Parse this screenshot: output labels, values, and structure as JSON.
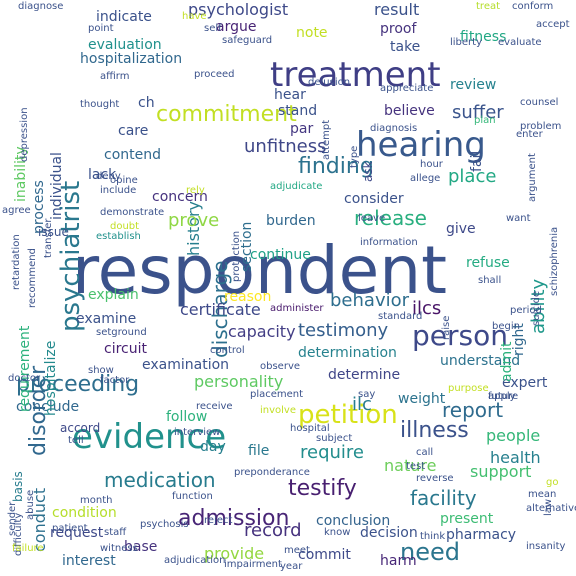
{
  "words": [
    {
      "text": "respondent",
      "color": "#3b528b"
    },
    {
      "text": "treatment",
      "color": "#3f3e85"
    },
    {
      "text": "hearing",
      "color": "#38598c"
    },
    {
      "text": "evidence",
      "color": "#21918c"
    },
    {
      "text": "petition",
      "color": "#d8e219"
    },
    {
      "text": "person",
      "color": "#3e4989"
    },
    {
      "text": "commitment",
      "color": "#c2df23"
    },
    {
      "text": "psychiatrist",
      "color": "#2a788e"
    },
    {
      "text": "testify",
      "color": "#481f70"
    },
    {
      "text": "admission",
      "color": "#482576"
    },
    {
      "text": "finding",
      "color": "#2c728e"
    },
    {
      "text": "disorder",
      "color": "#31688e"
    },
    {
      "text": "discharge",
      "color": "#2d708e"
    },
    {
      "text": "proceeding",
      "color": "#2e6e8e"
    },
    {
      "text": "medication",
      "color": "#287c8e"
    },
    {
      "text": "illness",
      "color": "#3b528b"
    },
    {
      "text": "need",
      "color": "#2b758e"
    },
    {
      "text": "report",
      "color": "#2f6b8e"
    },
    {
      "text": "release",
      "color": "#29af7f"
    },
    {
      "text": "facility",
      "color": "#2a788e"
    },
    {
      "text": "record",
      "color": "#46327e"
    },
    {
      "text": "behavior",
      "color": "#2e6e8e"
    },
    {
      "text": "testimony",
      "color": "#355f8d"
    },
    {
      "text": "capacity",
      "color": "#433e85"
    },
    {
      "text": "certificate",
      "color": "#3e4989"
    },
    {
      "text": "psychologist",
      "color": "#3e4989"
    },
    {
      "text": "result",
      "color": "#3b528b"
    },
    {
      "text": "unfitness",
      "color": "#3f4788"
    },
    {
      "text": "history",
      "color": "#277f8e"
    },
    {
      "text": "ability",
      "color": "#1f988b"
    },
    {
      "text": "suffer",
      "color": "#3a548c"
    },
    {
      "text": "place",
      "color": "#22a884"
    },
    {
      "text": "prove",
      "color": "#8fd744"
    },
    {
      "text": "determination",
      "color": "#26828e"
    },
    {
      "text": "personality",
      "color": "#5ec962"
    },
    {
      "text": "determine",
      "color": "#404688"
    },
    {
      "text": "ilc",
      "color": "#287d8e"
    },
    {
      "text": "ilcs",
      "color": "#481467"
    },
    {
      "text": "require",
      "color": "#228d8d"
    },
    {
      "text": "people",
      "color": "#35b779"
    },
    {
      "text": "health",
      "color": "#27808e"
    },
    {
      "text": "support",
      "color": "#44bf70"
    },
    {
      "text": "nature",
      "color": "#6ccd5a"
    },
    {
      "text": "conduct",
      "color": "#2d708e"
    },
    {
      "text": "conclusion",
      "color": "#33638d"
    },
    {
      "text": "present",
      "color": "#3dbc74"
    },
    {
      "text": "decision",
      "color": "#3b528b"
    },
    {
      "text": "provide",
      "color": "#93d741"
    },
    {
      "text": "interest",
      "color": "#31688e"
    },
    {
      "text": "commit",
      "color": "#3e4989"
    },
    {
      "text": "pharmacy",
      "color": "#3b528b"
    },
    {
      "text": "harm",
      "color": "#482878"
    },
    {
      "text": "base",
      "color": "#46337e"
    },
    {
      "text": "request",
      "color": "#3e4989"
    },
    {
      "text": "condition",
      "color": "#b5de2b"
    },
    {
      "text": "day",
      "color": "#277f8e"
    },
    {
      "text": "file",
      "color": "#2a788e"
    },
    {
      "text": "follow",
      "color": "#2db27d"
    },
    {
      "text": "weight",
      "color": "#2c738e"
    },
    {
      "text": "expert",
      "color": "#3b528b"
    },
    {
      "text": "understand",
      "color": "#2c728e"
    },
    {
      "text": "conclude",
      "color": "#31688e"
    },
    {
      "text": "examination",
      "color": "#3b528b"
    },
    {
      "text": "circuit",
      "color": "#482173"
    },
    {
      "text": "examine",
      "color": "#3b528b"
    },
    {
      "text": "explain",
      "color": "#4ac16d"
    },
    {
      "text": "reason",
      "color": "#fde725"
    },
    {
      "text": "continue",
      "color": "#1fa187"
    },
    {
      "text": "burden",
      "color": "#31688e"
    },
    {
      "text": "give",
      "color": "#3e4989"
    },
    {
      "text": "consider",
      "color": "#3b528b"
    },
    {
      "text": "refuse",
      "color": "#25ab82"
    },
    {
      "text": "admit",
      "color": "#2db27d"
    },
    {
      "text": "right",
      "color": "#31688e"
    },
    {
      "text": "hospitalize",
      "color": "#238a8d"
    },
    {
      "text": "concern",
      "color": "#46327e"
    },
    {
      "text": "section",
      "color": "#2e6e8e"
    },
    {
      "text": "lack",
      "color": "#3b528b"
    },
    {
      "text": "contend",
      "color": "#31688e"
    },
    {
      "text": "care",
      "color": "#3b528b"
    },
    {
      "text": "stand",
      "color": "#3b528b"
    },
    {
      "text": "par",
      "color": "#453882"
    },
    {
      "text": "believe",
      "color": "#46337e"
    },
    {
      "text": "hear",
      "color": "#3b528b"
    },
    {
      "text": "ask",
      "color": "#3e4989"
    },
    {
      "text": "fail",
      "color": "#3b528b"
    },
    {
      "text": "review",
      "color": "#26828e"
    },
    {
      "text": "hospitalization",
      "color": "#31688e"
    },
    {
      "text": "evaluation",
      "color": "#21918c"
    },
    {
      "text": "note",
      "color": "#c2df23"
    },
    {
      "text": "argue",
      "color": "#482475"
    },
    {
      "text": "indicate",
      "color": "#3b528b"
    },
    {
      "text": "proof",
      "color": "#46337e"
    },
    {
      "text": "take",
      "color": "#3b528b"
    },
    {
      "text": "fitness",
      "color": "#22a884"
    },
    {
      "text": "individual",
      "color": "#3b528b"
    },
    {
      "text": "process",
      "color": "#31688e"
    },
    {
      "text": "inability",
      "color": "#5ec962"
    },
    {
      "text": "requirement",
      "color": "#2db27d"
    },
    {
      "text": "issue",
      "color": "#3b528b"
    },
    {
      "text": "ch",
      "color": "#3b528b"
    },
    {
      "text": "basis",
      "color": "#287d8e"
    },
    {
      "text": "accord",
      "color": "#3e4989"
    },
    {
      "text": "tell",
      "color": "#3b528b"
    },
    {
      "text": "show",
      "color": "#3b528b"
    },
    {
      "text": "setground",
      "color": "#3b528b"
    },
    {
      "text": "administer",
      "color": "#481a6c"
    },
    {
      "text": "standard",
      "color": "#3b528b"
    },
    {
      "text": "information",
      "color": "#3b528b"
    },
    {
      "text": "establish",
      "color": "#21918c"
    },
    {
      "text": "demonstrate",
      "color": "#3b528b"
    },
    {
      "text": "adjudicate",
      "color": "#22a884"
    },
    {
      "text": "diagnosis",
      "color": "#3b528b"
    },
    {
      "text": "plan",
      "color": "#35b779"
    },
    {
      "text": "problem",
      "color": "#3b528b"
    },
    {
      "text": "counsel",
      "color": "#3b528b"
    },
    {
      "text": "appreciate",
      "color": "#3b528b"
    },
    {
      "text": "delusion",
      "color": "#3b528b"
    },
    {
      "text": "liberty",
      "color": "#3b528b"
    },
    {
      "text": "evaluate",
      "color": "#3b528b"
    },
    {
      "text": "safeguard",
      "color": "#3b528b"
    },
    {
      "text": "point",
      "color": "#3b528b"
    },
    {
      "text": "self",
      "color": "#3b528b"
    },
    {
      "text": "diagnose",
      "color": "#3b528b"
    },
    {
      "text": "have",
      "color": "#c2df23"
    },
    {
      "text": "treat",
      "color": "#b5de2b"
    },
    {
      "text": "conform",
      "color": "#3b528b"
    },
    {
      "text": "accept",
      "color": "#3b528b"
    },
    {
      "text": "affirm",
      "color": "#3b528b"
    },
    {
      "text": "proceed",
      "color": "#3b528b"
    },
    {
      "text": "thought",
      "color": "#3b528b"
    },
    {
      "text": "depression",
      "color": "#3b528b"
    },
    {
      "text": "deny",
      "color": "#3b528b"
    },
    {
      "text": "opine",
      "color": "#3b528b"
    },
    {
      "text": "include",
      "color": "#3b528b"
    },
    {
      "text": "rely",
      "color": "#c2df23"
    },
    {
      "text": "retardation",
      "color": "#3b528b"
    },
    {
      "text": "transfer",
      "color": "#3b528b"
    },
    {
      "text": "recommend",
      "color": "#3b528b"
    },
    {
      "text": "agree",
      "color": "#3b528b"
    },
    {
      "text": "doubt",
      "color": "#c2df23"
    },
    {
      "text": "protection",
      "color": "#3b528b"
    },
    {
      "text": "leave",
      "color": "#3b528b"
    },
    {
      "text": "allege",
      "color": "#3b528b"
    },
    {
      "text": "hour",
      "color": "#3b528b"
    },
    {
      "text": "type",
      "color": "#3b528b"
    },
    {
      "text": "attempt",
      "color": "#3b528b"
    },
    {
      "text": "enter",
      "color": "#3b528b"
    },
    {
      "text": "want",
      "color": "#3b528b"
    },
    {
      "text": "schizophrenia",
      "color": "#3b528b"
    },
    {
      "text": "argument",
      "color": "#3b528b"
    },
    {
      "text": "suicide",
      "color": "#3b528b"
    },
    {
      "text": "raise",
      "color": "#3b528b"
    },
    {
      "text": "shall",
      "color": "#3b528b"
    },
    {
      "text": "period",
      "color": "#3b528b"
    },
    {
      "text": "begin",
      "color": "#3b528b"
    },
    {
      "text": "control",
      "color": "#3b528b"
    },
    {
      "text": "observe",
      "color": "#3b528b"
    },
    {
      "text": "doctor",
      "color": "#3b528b"
    },
    {
      "text": "factor",
      "color": "#3b528b"
    },
    {
      "text": "placement",
      "color": "#3b528b"
    },
    {
      "text": "say",
      "color": "#3b528b"
    },
    {
      "text": "apply",
      "color": "#3b528b"
    },
    {
      "text": "future",
      "color": "#3b528b"
    },
    {
      "text": "purpose",
      "color": "#c2df23"
    },
    {
      "text": "receive",
      "color": "#3b528b"
    },
    {
      "text": "involve",
      "color": "#c2df23"
    },
    {
      "text": "interview",
      "color": "#3b528b"
    },
    {
      "text": "hospital",
      "color": "#3b528b"
    },
    {
      "text": "subject",
      "color": "#3b528b"
    },
    {
      "text": "preponderance",
      "color": "#3b528b"
    },
    {
      "text": "call",
      "color": "#3b528b"
    },
    {
      "text": "test",
      "color": "#3b528b"
    },
    {
      "text": "reverse",
      "color": "#3b528b"
    },
    {
      "text": "law",
      "color": "#3b528b"
    },
    {
      "text": "mean",
      "color": "#3b528b"
    },
    {
      "text": "alternative",
      "color": "#3b528b"
    },
    {
      "text": "function",
      "color": "#3b528b"
    },
    {
      "text": "sender",
      "color": "#3b528b"
    },
    {
      "text": "abuse",
      "color": "#3b528b"
    },
    {
      "text": "month",
      "color": "#3b528b"
    },
    {
      "text": "patient",
      "color": "#3b528b"
    },
    {
      "text": "psychosis",
      "color": "#3b528b"
    },
    {
      "text": "reject",
      "color": "#3b528b"
    },
    {
      "text": "difficulty",
      "color": "#3b528b"
    },
    {
      "text": "know",
      "color": "#3b528b"
    },
    {
      "text": "think",
      "color": "#3b528b"
    },
    {
      "text": "witness",
      "color": "#3b528b"
    },
    {
      "text": "staff",
      "color": "#3b528b"
    },
    {
      "text": "meet",
      "color": "#3b528b"
    },
    {
      "text": "failure",
      "color": "#c2df23"
    },
    {
      "text": "adjudication",
      "color": "#3b528b"
    },
    {
      "text": "impairment",
      "color": "#3b528b"
    },
    {
      "text": "year",
      "color": "#3b528b"
    },
    {
      "text": "insanity",
      "color": "#3b528b"
    },
    {
      "text": "go",
      "color": "#c2df23"
    }
  ]
}
